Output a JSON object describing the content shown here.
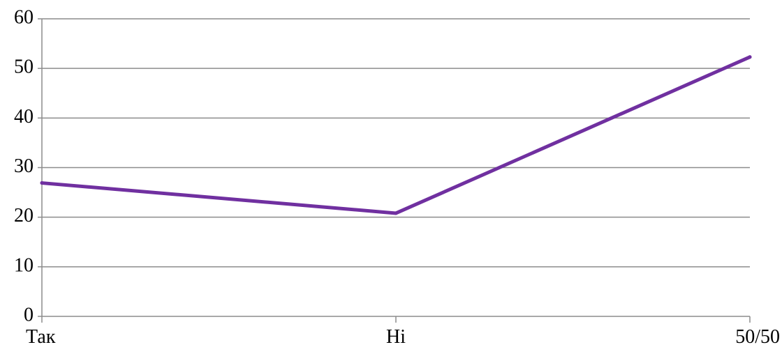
{
  "chart_data": {
    "type": "line",
    "categories": [
      "Так",
      "Ні",
      "50/50"
    ],
    "series": [
      {
        "values": [
          26.9,
          20.8,
          52.3
        ],
        "color": "#7030A0"
      }
    ],
    "title": "",
    "xlabel": "",
    "ylabel": "",
    "ylim": [
      0,
      60
    ],
    "yticks": [
      "0",
      "10",
      "20",
      "30",
      "40",
      "50",
      "60"
    ],
    "grid": true,
    "legend": "none"
  },
  "colors": {
    "gridline": "#8C8C8C",
    "axis": "#8C8C8C",
    "text": "#000000"
  }
}
